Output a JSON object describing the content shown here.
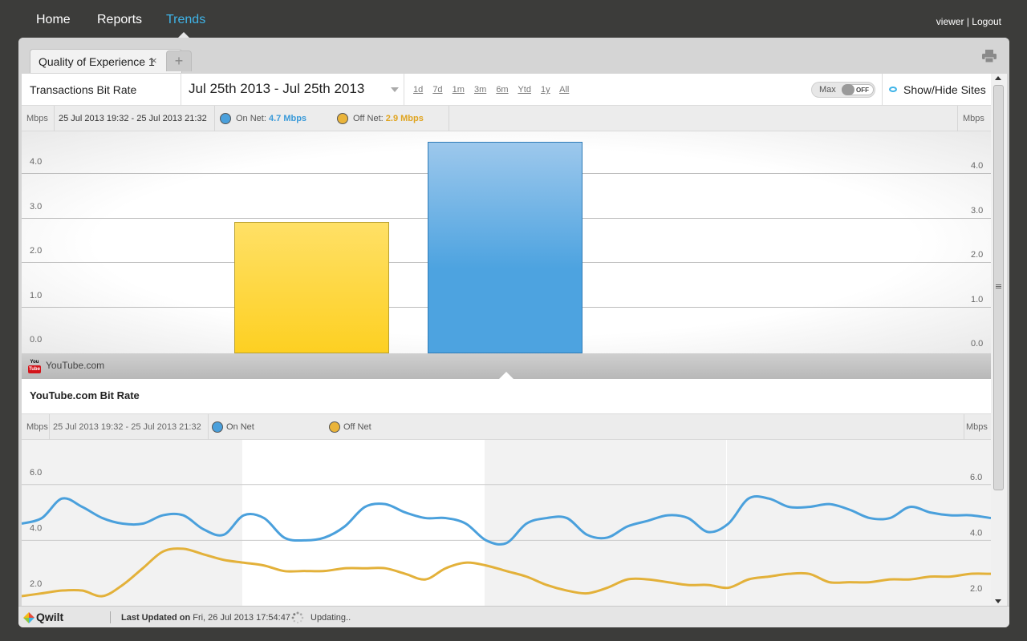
{
  "nav": {
    "items": [
      {
        "label": "Home"
      },
      {
        "label": "Reports"
      },
      {
        "label": "Trends"
      }
    ],
    "active": "Trends",
    "user": "viewer",
    "separator": "|",
    "logout": "Logout"
  },
  "tabs": {
    "active_label": "Quality of Experience 1",
    "close_glyph": "×",
    "add_glyph": "+"
  },
  "toolbar": {
    "title": "Transactions Bit Rate",
    "date_range": "Jul 25th 2013 - Jul 25th 2013",
    "ranges": [
      "1d",
      "7d",
      "1m",
      "3m",
      "6m",
      "Ytd",
      "1y",
      "All"
    ],
    "max_label": "Max",
    "max_state": "OFF",
    "show_hide": "Show/Hide Sites"
  },
  "colors": {
    "accent": "#3fb4e8",
    "on_net": "#4aa0dc",
    "off_net": "#e3b13a",
    "off_net_bar": "#fdd022"
  },
  "bar_section": {
    "unit_left": "Mbps",
    "unit_right": "Mbps",
    "time_range": "25 Jul 2013 19:32 - 25 Jul 2013 21:32",
    "on_net_label": "On Net:",
    "on_net_value": "4.7 Mbps",
    "off_net_label": "Off Net:",
    "off_net_value": "2.9 Mbps",
    "site": "YouTube.com",
    "site_icon_top": "You",
    "site_icon_bottom": "Tube"
  },
  "line_section": {
    "title": "YouTube.com Bit Rate",
    "unit_left": "Mbps",
    "unit_right": "Mbps",
    "time_range": "25 Jul 2013 19:32 - 25 Jul 2013 21:32",
    "on_net_label": "On Net",
    "off_net_label": "Off Net"
  },
  "chart_data": [
    {
      "type": "bar",
      "categories": [
        "Off Net",
        "On Net"
      ],
      "values": [
        2.9,
        4.7
      ],
      "ylabel": "Mbps",
      "ylim": [
        0,
        4.7
      ],
      "yticks_left": [
        "0.0",
        "1.0",
        "2.0",
        "3.0",
        "4.0"
      ],
      "yticks_right": [
        "0.0",
        "1.0",
        "2.0",
        "3.0",
        "4.0"
      ],
      "grid": true
    },
    {
      "type": "line",
      "x": [
        0,
        0.5,
        1,
        1.5,
        2,
        2.5,
        3,
        3.5,
        4,
        4.5,
        5,
        5.5,
        6,
        6.5,
        7,
        7.5,
        8,
        8.5,
        9,
        9.5,
        10,
        10.5,
        11,
        11.5,
        12,
        12.5,
        13,
        13.5,
        14,
        14.5,
        15,
        15.5,
        16,
        16.5,
        17,
        17.5,
        18,
        18.5,
        19,
        19.5,
        20,
        20.5,
        21,
        21.5,
        22,
        22.5,
        23,
        23.5,
        24
      ],
      "series": [
        {
          "name": "On Net",
          "values": [
            4.6,
            4.8,
            5.5,
            5.2,
            4.8,
            4.6,
            4.6,
            4.9,
            4.9,
            4.4,
            4.2,
            4.9,
            4.8,
            4.1,
            4.0,
            4.1,
            4.5,
            5.2,
            5.3,
            5.0,
            4.8,
            4.8,
            4.6,
            4.0,
            3.9,
            4.6,
            4.8,
            4.8,
            4.2,
            4.1,
            4.5,
            4.7,
            4.9,
            4.8,
            4.3,
            4.6,
            5.5,
            5.5,
            5.2,
            5.2,
            5.3,
            5.1,
            4.8,
            4.8,
            5.2,
            5.0,
            4.9,
            4.9,
            4.8
          ]
        },
        {
          "name": "Off Net",
          "values": [
            2.0,
            2.1,
            2.2,
            2.2,
            2.0,
            2.4,
            3.0,
            3.6,
            3.7,
            3.5,
            3.3,
            3.2,
            3.1,
            2.9,
            2.9,
            2.9,
            3.0,
            3.0,
            3.0,
            2.8,
            2.6,
            3.0,
            3.2,
            3.1,
            2.9,
            2.7,
            2.4,
            2.2,
            2.1,
            2.3,
            2.6,
            2.6,
            2.5,
            2.4,
            2.4,
            2.3,
            2.6,
            2.7,
            2.8,
            2.8,
            2.5,
            2.5,
            2.5,
            2.6,
            2.6,
            2.7,
            2.7,
            2.8,
            2.8
          ]
        }
      ],
      "ylabel": "Mbps",
      "ylim": [
        1.8,
        7.2
      ],
      "yticks_left": [
        "2.0",
        "4.0",
        "6.0"
      ],
      "yticks_right": [
        "2.0",
        "4.0",
        "6.0"
      ],
      "grid": true
    }
  ],
  "footer": {
    "logo": "Qwilt",
    "updated_label": "Last Updated on",
    "updated_value": "Fri, 26 Jul 2013 17:54:47",
    "status": "Updating.."
  }
}
